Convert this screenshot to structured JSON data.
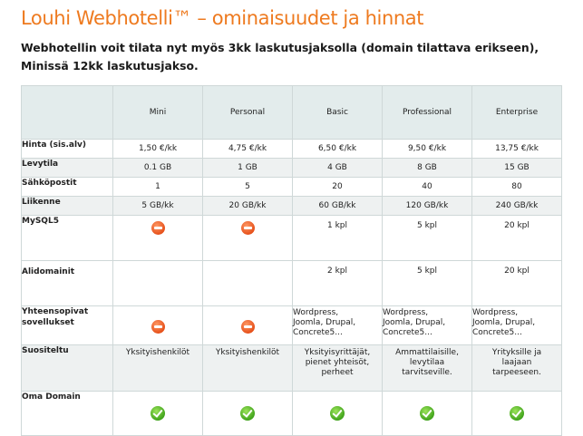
{
  "page": {
    "title": "Louhi Webhotelli™ – ominaisuudet ja hinnat",
    "intro": "Webhotellin voit tilata nyt myös 3kk laskutusjaksolla (domain tilattava erikseen), Minissä 12kk laskutusjakso."
  },
  "plans": [
    "Mini",
    "Personal",
    "Basic",
    "Professional",
    "Enterprise"
  ],
  "rows": {
    "price": {
      "label": "Hinta (sis.alv)",
      "values": [
        "1,50 €/kk",
        "4,75 €/kk",
        "6,50 €/kk",
        "9,50 €/kk",
        "13,75 €/kk"
      ]
    },
    "disk": {
      "label": "Levytila",
      "values": [
        "0.1 GB",
        "1 GB",
        "4 GB",
        "8 GB",
        "15 GB"
      ]
    },
    "email": {
      "label": "Sähköpostit",
      "values": [
        "1",
        "5",
        "20",
        "40",
        "80"
      ]
    },
    "traffic": {
      "label": "Liikenne",
      "values": [
        "5 GB/kk",
        "20 GB/kk",
        "60 GB/kk",
        "120 GB/kk",
        "240 GB/kk"
      ]
    },
    "mysql": {
      "label": "MySQL5",
      "values": [
        "1 kpl",
        "5 kpl",
        "20 kpl"
      ]
    },
    "subdomains": {
      "label": "Alidomainit",
      "values": [
        "2 kpl",
        "5 kpl",
        "20 kpl"
      ]
    },
    "compat": {
      "label": "Yhteensopivat sovellukset",
      "values": [
        "Wordpress,\nJoomla, Drupal,\nConcrete5...",
        "Wordpress,\nJoomla, Drupal,\nConcrete5...",
        "Wordpress,\nJoomla, Drupal,\nConcrete5..."
      ]
    },
    "recommended": {
      "label": "Suositeltu",
      "values": [
        "Yksityishenkilöt",
        "Yksityishenkilöt",
        "Yksityisyrittäjät,\npienet yhteisöt,\nperheet",
        "Ammattilaisille,\nlevytilaa\ntarvitseville.",
        "Yrityksille ja\nlaajaan\ntarpeeseen."
      ]
    },
    "own_domain": {
      "label": "Oma Domain"
    }
  },
  "icons": {
    "not_included": "no-entry-icon",
    "included": "check-icon"
  },
  "colors": {
    "accent": "#ee7a1f",
    "header_bg": "#e3ecec",
    "alt_row_bg": "#eef1f1",
    "check_green": "#3ea21a",
    "no_red": "#e6501a"
  }
}
